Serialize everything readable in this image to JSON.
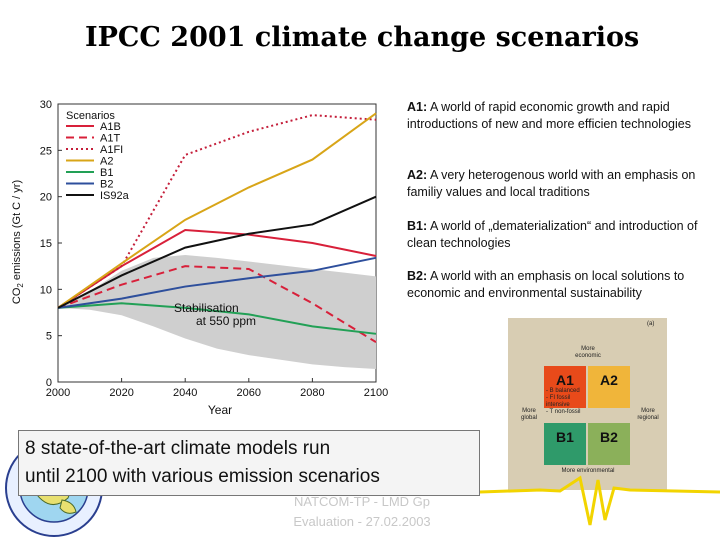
{
  "slide": {
    "title": "IPCC 2001 climate change scenarios",
    "callout_line1": "8 state-of-the-art climate models run",
    "callout_line2": "until 2100 with various emission scenarios",
    "footer_line1": "NATCOM-TP - LMD Gp",
    "footer_line2": "Evaluation - 27.02.2003"
  },
  "descriptions": [
    {
      "key": "A1:",
      "text": "A world of rapid economic growth and rapid introductions of new and more efficien technologies"
    },
    {
      "key": "A2:",
      "text": "A very heterogenous world with an emphasis on familiy values and local traditions"
    },
    {
      "key": "B1:",
      "text": "A world of „dematerialization“ and introduction of clean technologies"
    },
    {
      "key": "B2:",
      "text": "A world with an emphasis on local solutions to economic and environmental sustainability"
    }
  ],
  "quadrant": {
    "panel_label": "(a)",
    "top": "More economic",
    "bottom": "More environmental",
    "left": "More global",
    "right": "More regional",
    "cells": [
      "A1",
      "A2",
      "B1",
      "B2"
    ],
    "a1_sub": [
      "- B  balanced",
      "- FI  fossil intensive",
      "- T  non-fossil"
    ],
    "colors": {
      "A1": "#e84a1a",
      "A2": "#f0b53a",
      "B1": "#2f9a6a",
      "B2": "#8bb05a"
    }
  },
  "chart_data": {
    "type": "line",
    "title": "",
    "xlabel": "Year",
    "ylabel_parts": [
      "CO",
      "2",
      " emissions (Gt C / yr)"
    ],
    "xlim": [
      2000,
      2100
    ],
    "ylim": [
      0,
      30
    ],
    "xticks": [
      2000,
      2020,
      2040,
      2060,
      2080,
      2100
    ],
    "yticks": [
      0,
      5,
      10,
      15,
      20,
      25,
      30
    ],
    "legend_title": "Scenarios",
    "legend_position": "top-left",
    "band_label_line1": "Stabilisation",
    "band_label_line2": "at 550 ppm",
    "band": {
      "x": [
        2000,
        2010,
        2020,
        2030,
        2040,
        2050,
        2060,
        2070,
        2080,
        2090,
        2100
      ],
      "upper": [
        8.0,
        9.8,
        12.0,
        13.4,
        13.7,
        13.4,
        13.0,
        12.6,
        12.2,
        11.8,
        11.4
      ],
      "lower": [
        8.0,
        7.8,
        7.2,
        6.0,
        4.7,
        3.6,
        2.9,
        2.4,
        1.9,
        1.6,
        1.4
      ]
    },
    "series": [
      {
        "name": "A1B",
        "color": "#d8203a",
        "dash": "",
        "x": [
          2000,
          2020,
          2040,
          2060,
          2080,
          2100
        ],
        "y": [
          8,
          12.5,
          16.4,
          15.9,
          15.0,
          13.6
        ]
      },
      {
        "name": "A1T",
        "color": "#d8203a",
        "dash": "8,5",
        "x": [
          2000,
          2020,
          2040,
          2060,
          2080,
          2100
        ],
        "y": [
          8,
          10.5,
          12.5,
          12.2,
          8.5,
          4.3
        ]
      },
      {
        "name": "A1FI",
        "color": "#c41e3a",
        "dash": "2,3",
        "x": [
          2000,
          2020,
          2040,
          2060,
          2080,
          2100
        ],
        "y": [
          8,
          12.5,
          24.5,
          27.0,
          28.8,
          28.3
        ]
      },
      {
        "name": "A2",
        "color": "#d8a518",
        "dash": "",
        "x": [
          2000,
          2020,
          2040,
          2060,
          2080,
          2100
        ],
        "y": [
          8,
          12.8,
          17.5,
          21.0,
          24.0,
          29.0
        ]
      },
      {
        "name": "B1",
        "color": "#22a056",
        "dash": "",
        "x": [
          2000,
          2020,
          2040,
          2060,
          2080,
          2100
        ],
        "y": [
          8,
          8.5,
          8.0,
          7.3,
          6.0,
          5.2
        ]
      },
      {
        "name": "B2",
        "color": "#2e4f9c",
        "dash": "",
        "x": [
          2000,
          2020,
          2040,
          2060,
          2080,
          2100
        ],
        "y": [
          8,
          9.0,
          10.3,
          11.2,
          12.0,
          13.4
        ]
      },
      {
        "name": "IS92a",
        "color": "#111111",
        "dash": "",
        "x": [
          2000,
          2020,
          2040,
          2060,
          2080,
          2100
        ],
        "y": [
          8,
          11.5,
          14.5,
          16.0,
          17.0,
          20.0
        ]
      }
    ]
  }
}
